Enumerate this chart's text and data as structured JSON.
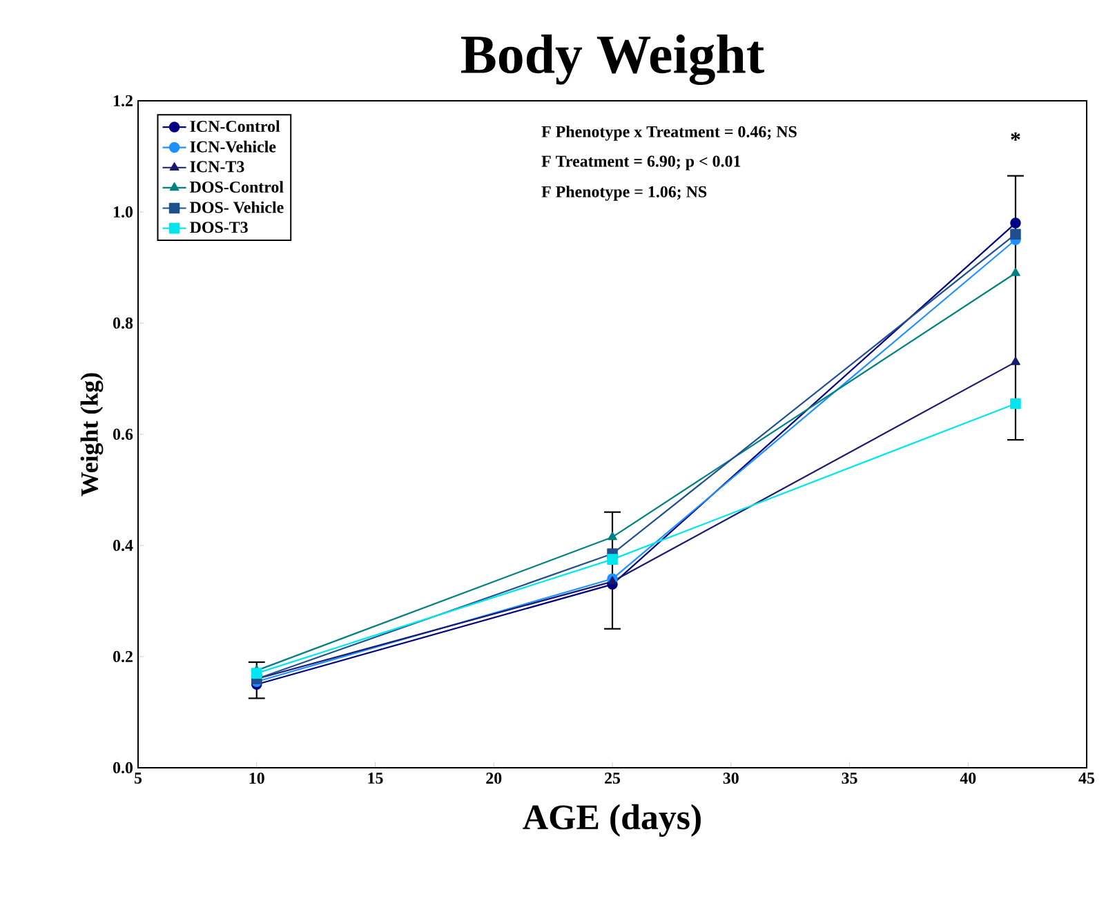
{
  "chart_data": {
    "type": "line",
    "title": "Body Weight",
    "xlabel": "AGE (days)",
    "ylabel": "Weight (kg)",
    "x": [
      10,
      25,
      42
    ],
    "xlim": [
      5,
      45
    ],
    "xticks": [
      5,
      10,
      15,
      20,
      25,
      30,
      35,
      40,
      45
    ],
    "ylim": [
      0,
      1.2
    ],
    "yticks": [
      {
        "value": 0,
        "label": "0.0"
      },
      {
        "value": 0.2,
        "label": "0.2"
      },
      {
        "value": 0.4,
        "label": "0.4"
      },
      {
        "value": 0.6,
        "label": "0.6"
      },
      {
        "value": 0.8,
        "label": "0.8"
      },
      {
        "value": 1.0,
        "label": "1.0"
      },
      {
        "value": 1.2,
        "label": "1.2"
      }
    ],
    "legend": "top left",
    "grid": false,
    "line_style": "solid",
    "series": [
      {
        "name": "ICN-Control",
        "color": "#000080",
        "marker": "circle",
        "values": [
          0.15,
          0.33,
          0.98
        ],
        "errors": [
          [
            0.125,
            0.19
          ],
          [
            0.25,
            0.46
          ],
          [
            0.59,
            1.065
          ]
        ]
      },
      {
        "name": "ICN-Vehicle",
        "color": "#1e90ff",
        "marker": "circle",
        "values": [
          0.155,
          0.34,
          0.95
        ]
      },
      {
        "name": "ICN-T3",
        "color": "#191970",
        "marker": "triangle",
        "values": [
          0.16,
          0.335,
          0.73
        ]
      },
      {
        "name": "DOS-Control",
        "color": "#008080",
        "marker": "triangle",
        "values": [
          0.175,
          0.415,
          0.89
        ]
      },
      {
        "name": "DOS- Vehicle",
        "color": "#1f4f8f",
        "marker": "square",
        "values": [
          0.16,
          0.385,
          0.96
        ]
      },
      {
        "name": "DOS-T3",
        "color": "#00e5ee",
        "marker": "square",
        "values": [
          0.17,
          0.375,
          0.655
        ]
      }
    ],
    "annotations": [
      "F Phenotype x Treatment = 0.46; NS",
      "F Treatment = 6.90; p < 0.01",
      "F Phenotype = 1.06; NS",
      "*"
    ]
  }
}
